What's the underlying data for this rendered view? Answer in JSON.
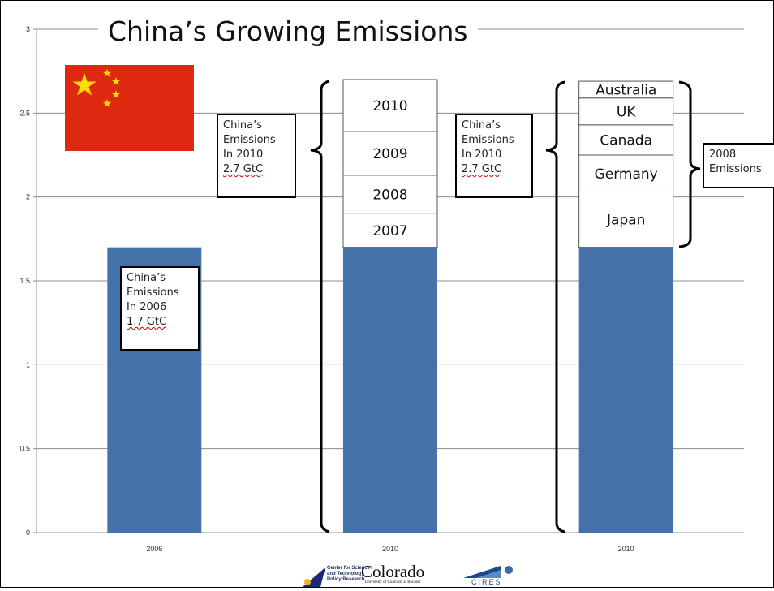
{
  "chart_data": {
    "type": "bar",
    "title": "China’s Growing Emissions",
    "categories": [
      "2006",
      "2010",
      "2010"
    ],
    "values": [
      1.7,
      1.7,
      1.7
    ],
    "ylim": [
      0,
      3
    ],
    "yticks": [
      "0",
      "0.5",
      "1",
      "1.5",
      "2",
      "2.5",
      "3"
    ],
    "ytick_values": [
      0,
      0.5,
      1,
      1.5,
      2,
      2.5,
      3
    ],
    "grid": true,
    "bar_color": "#4472a8",
    "stacked_segments": [
      {
        "category_index": 1,
        "label": "2007",
        "bottom": 1.7,
        "top": 1.9
      },
      {
        "category_index": 1,
        "label": "2008",
        "bottom": 1.9,
        "top": 2.13
      },
      {
        "category_index": 1,
        "label": "2009",
        "bottom": 2.13,
        "top": 2.39
      },
      {
        "category_index": 1,
        "label": "2010",
        "bottom": 2.39,
        "top": 2.7
      },
      {
        "category_index": 2,
        "label": "Japan",
        "bottom": 1.7,
        "top": 2.03
      },
      {
        "category_index": 2,
        "label": "Germany",
        "bottom": 2.03,
        "top": 2.25
      },
      {
        "category_index": 2,
        "label": "Canada",
        "bottom": 2.25,
        "top": 2.43
      },
      {
        "category_index": 2,
        "label": "UK",
        "bottom": 2.43,
        "top": 2.59
      },
      {
        "category_index": 2,
        "label": "Australia",
        "bottom": 2.59,
        "top": 2.69
      }
    ]
  },
  "callouts": {
    "c2006": [
      "China’s",
      "Emissions",
      "In 2006",
      "1.7 GtC"
    ],
    "c2010a": [
      "China’s",
      "Emissions",
      "In 2010",
      "2.7 GtC"
    ],
    "c2010b": [
      "China’s",
      "Emissions",
      "In 2010",
      "2.7 GtC"
    ],
    "c2008": [
      "2008",
      "Emissions"
    ]
  },
  "flag": {
    "color": "#de2910",
    "star_color": "#ffde00",
    "icon": "china-flag-icon"
  },
  "logos": {
    "csp": [
      "Center for Science",
      "and Technology",
      "Policy Research"
    ],
    "colorado": "Colorado",
    "colorado_sub": "University of Colorado at Boulder",
    "cires": "CIRES"
  }
}
